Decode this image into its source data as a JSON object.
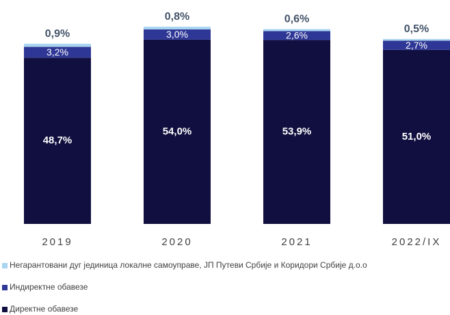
{
  "chart_data": {
    "type": "stacked_bar",
    "categories": [
      "2019",
      "2020",
      "2021",
      "2022/IX"
    ],
    "series": [
      {
        "name": "Директне обавезе",
        "color": "#100f3f",
        "values": [
          48.7,
          54.0,
          53.9,
          51.0
        ],
        "value_labels": [
          "48,7%",
          "54,0%",
          "53,9%",
          "51,0%"
        ]
      },
      {
        "name": "Индиректне обавезе",
        "color": "#2f3796",
        "values": [
          3.2,
          3.0,
          2.6,
          2.7
        ],
        "value_labels": [
          "3,2%",
          "3,0%",
          "2,6%",
          "2,7%"
        ]
      },
      {
        "name": "Негарантовани дуг јединица локалне самоуправе, ЈП Путеви Србије и Коридори Србије д.о.о",
        "color": "#a9d5f0",
        "values": [
          0.9,
          0.8,
          0.6,
          0.5
        ],
        "value_labels": [
          "0,9%",
          "0,8%",
          "0,6%",
          "0,5%"
        ]
      }
    ],
    "ylim": [
      0,
      60
    ]
  }
}
